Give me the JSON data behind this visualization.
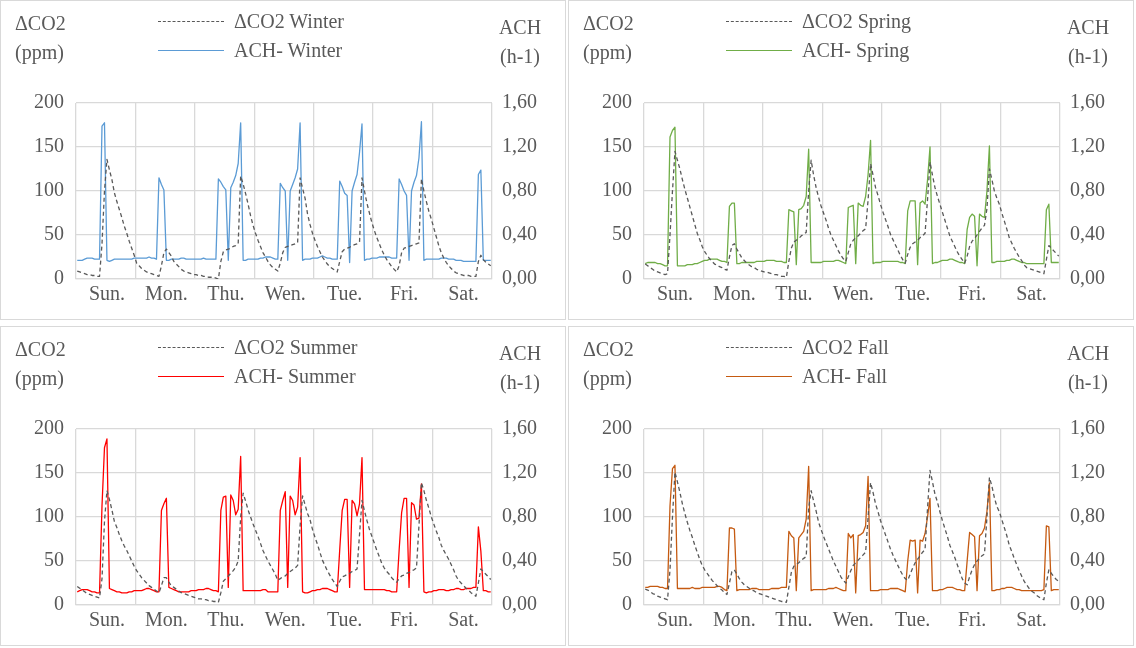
{
  "chart_data": [
    {
      "type": "line",
      "ylabel": "ΔCO2 (ppm)",
      "y2label": "ACH (h-1)",
      "legend": "top",
      "grid": true,
      "categories": [
        null,
        null,
        null,
        null,
        null,
        null,
        null,
        null,
        null,
        null,
        null,
        null,
        "Sun.",
        null,
        null,
        null,
        null,
        null,
        null,
        null,
        null,
        null,
        null,
        null,
        null,
        null,
        null,
        null,
        null,
        null,
        null,
        null,
        null,
        null,
        null,
        null,
        "Mon.",
        null,
        null,
        null,
        null,
        null,
        null,
        null,
        null,
        null,
        null,
        null,
        null,
        null,
        null,
        null,
        null,
        null,
        null,
        null,
        null,
        null,
        null,
        null,
        "Thu.",
        null,
        null,
        null,
        null,
        null,
        null,
        null,
        null,
        null,
        null,
        null,
        null,
        null,
        null,
        null,
        null,
        null,
        null,
        null,
        null,
        null,
        null,
        null,
        "Wen.",
        null,
        null,
        null,
        null,
        null,
        null,
        null,
        null,
        null,
        null,
        null,
        null,
        null,
        null,
        null,
        null,
        null,
        null,
        null,
        null,
        null,
        null,
        null,
        "Tue.",
        null,
        null,
        null,
        null,
        null,
        null,
        null,
        null,
        null,
        null,
        null,
        null,
        null,
        null,
        null,
        null,
        null,
        null,
        null,
        null,
        null,
        null,
        null,
        "Fri.",
        null,
        null,
        null,
        null,
        null,
        null,
        null,
        null,
        null,
        null,
        null,
        null,
        null,
        null,
        null,
        null,
        null,
        null,
        null,
        null,
        null,
        null,
        null,
        "Sat.",
        null,
        null,
        null,
        null,
        null,
        null,
        null,
        null,
        null,
        null,
        null
      ],
      "ylim": [
        0,
        200
      ],
      "yticks": [
        0,
        50,
        100,
        150,
        200
      ],
      "y2lim": [
        0,
        1.6
      ],
      "y2ticks": [
        {
          "value": 0,
          "label": "0,00"
        },
        {
          "value": 0.4,
          "label": "0,40"
        },
        {
          "value": 0.8,
          "label": "0,80"
        },
        {
          "value": 1.2,
          "label": "1,20"
        },
        {
          "value": 1.6,
          "label": "1,60"
        }
      ],
      "series": [
        {
          "name": "ΔCO2 Winter",
          "color": "#595959",
          "line_style": "dashed",
          "values": [
            9,
            8,
            7,
            6,
            5,
            5,
            4,
            4,
            3,
            3,
            40,
            100,
            136,
            124,
            113,
            98,
            88,
            79,
            70,
            60,
            52,
            43,
            35,
            27,
            18,
            15,
            12,
            10,
            8,
            7,
            6,
            5,
            4,
            3,
            15,
            30,
            34,
            30,
            26,
            20,
            17,
            14,
            11,
            9,
            8,
            7,
            6,
            5,
            5,
            4,
            4,
            3,
            3,
            2,
            2,
            2,
            1,
            0,
            20,
            31,
            33,
            34,
            35,
            37,
            38,
            40,
            117,
            108,
            97,
            85,
            72,
            61,
            52,
            44,
            37,
            30,
            25,
            20,
            16,
            13,
            11,
            9,
            18,
            30,
            36,
            37,
            38,
            39,
            40,
            41,
            115,
            103,
            92,
            74,
            62,
            52,
            44,
            37,
            31,
            25,
            21,
            17,
            14,
            12,
            10,
            8,
            20,
            31,
            34,
            35,
            36,
            38,
            39,
            40,
            42,
            115,
            100,
            86,
            75,
            64,
            55,
            47,
            40,
            33,
            27,
            22,
            18,
            14,
            11,
            8,
            15,
            30,
            35,
            36,
            37,
            38,
            39,
            40,
            41,
            114,
            100,
            88,
            77,
            68,
            58,
            48,
            38,
            30,
            24,
            19,
            15,
            12,
            9,
            7,
            6,
            5,
            4,
            4,
            4,
            3,
            3,
            3,
            20,
            27,
            22,
            19,
            17,
            15
          ]
        },
        {
          "name": "ACH- Winter",
          "color": "#5b9bd5",
          "axis": "y2",
          "values": [
            0.17,
            0.17,
            0.17,
            0.18,
            0.19,
            0.19,
            0.19,
            0.18,
            0.18,
            0.18,
            1.39,
            1.42,
            0.17,
            0.16,
            0.17,
            0.18,
            0.18,
            0.18,
            0.18,
            0.18,
            0.18,
            0.18,
            0.18,
            0.19,
            0.19,
            0.19,
            0.19,
            0.19,
            0.19,
            0.2,
            0.19,
            0.19,
            0.18,
            0.92,
            0.86,
            0.81,
            0.17,
            0.17,
            0.18,
            0.18,
            0.18,
            0.18,
            0.19,
            0.19,
            0.18,
            0.18,
            0.18,
            0.18,
            0.18,
            0.18,
            0.18,
            0.19,
            0.18,
            0.18,
            0.18,
            0.18,
            0.18,
            0.91,
            0.88,
            0.84,
            0.81,
            0.17,
            0.83,
            0.88,
            0.94,
            1.05,
            1.42,
            0.17,
            0.17,
            0.18,
            0.18,
            0.18,
            0.18,
            0.18,
            0.19,
            0.19,
            0.2,
            0.2,
            0.2,
            0.19,
            0.18,
            0.18,
            0.87,
            0.83,
            0.8,
            0.17,
            0.8,
            0.86,
            0.92,
            1.0,
            1.42,
            0.17,
            0.18,
            0.18,
            0.18,
            0.19,
            0.19,
            0.19,
            0.2,
            0.21,
            0.2,
            0.19,
            0.19,
            0.18,
            0.18,
            0.18,
            0.89,
            0.84,
            0.78,
            0.76,
            0.15,
            0.8,
            0.88,
            0.95,
            1.15,
            1.41,
            0.17,
            0.18,
            0.18,
            0.19,
            0.19,
            0.19,
            0.2,
            0.2,
            0.2,
            0.2,
            0.2,
            0.19,
            0.19,
            0.19,
            0.91,
            0.86,
            0.8,
            0.76,
            0.17,
            0.8,
            0.88,
            0.94,
            1.1,
            1.43,
            0.17,
            0.18,
            0.18,
            0.18,
            0.18,
            0.18,
            0.18,
            0.19,
            0.19,
            0.19,
            0.18,
            0.18,
            0.18,
            0.17,
            0.17,
            0.17,
            0.16,
            0.16,
            0.16,
            0.16,
            0.16,
            0.16,
            0.95,
            0.99,
            0.17,
            0.17,
            0.17,
            0.17
          ]
        }
      ]
    },
    {
      "type": "line",
      "ylabel": "ΔCO2 (ppm)",
      "y2label": "ACH (h-1)",
      "legend": "top",
      "grid": true,
      "categories": [
        null,
        null,
        null,
        null,
        null,
        null,
        null,
        null,
        null,
        null,
        null,
        null,
        "Sun.",
        null,
        null,
        null,
        null,
        null,
        null,
        null,
        null,
        null,
        null,
        null,
        null,
        null,
        null,
        null,
        null,
        null,
        null,
        null,
        null,
        null,
        null,
        null,
        "Mon.",
        null,
        null,
        null,
        null,
        null,
        null,
        null,
        null,
        null,
        null,
        null,
        null,
        null,
        null,
        null,
        null,
        null,
        null,
        null,
        null,
        null,
        null,
        null,
        "Thu.",
        null,
        null,
        null,
        null,
        null,
        null,
        null,
        null,
        null,
        null,
        null,
        null,
        null,
        null,
        null,
        null,
        null,
        null,
        null,
        null,
        null,
        null,
        null,
        "Wen.",
        null,
        null,
        null,
        null,
        null,
        null,
        null,
        null,
        null,
        null,
        null,
        null,
        null,
        null,
        null,
        null,
        null,
        null,
        null,
        null,
        null,
        null,
        null,
        "Tue.",
        null,
        null,
        null,
        null,
        null,
        null,
        null,
        null,
        null,
        null,
        null,
        null,
        null,
        null,
        null,
        null,
        null,
        null,
        null,
        null,
        null,
        null,
        null,
        "Fri.",
        null,
        null,
        null,
        null,
        null,
        null,
        null,
        null,
        null,
        null,
        null,
        null,
        null,
        null,
        null,
        null,
        null,
        null,
        null,
        null,
        null,
        null,
        null,
        "Sat.",
        null,
        null,
        null,
        null,
        null,
        null,
        null,
        null,
        null,
        null,
        null
      ],
      "ylim": [
        0,
        200
      ],
      "yticks": [
        0,
        50,
        100,
        150,
        200
      ],
      "y2lim": [
        0,
        1.6
      ],
      "y2ticks": [
        {
          "value": 0,
          "label": "0,00"
        },
        {
          "value": 0.4,
          "label": "0,40"
        },
        {
          "value": 0.8,
          "label": "0,80"
        },
        {
          "value": 1.2,
          "label": "1,20"
        },
        {
          "value": 1.6,
          "label": "1,60"
        }
      ],
      "series": [
        {
          "name": "ΔCO2 Spring",
          "color": "#595959",
          "line_style": "dashed",
          "values": [
            17,
            15,
            13,
            11,
            9,
            8,
            7,
            6,
            5,
            6,
            50,
            100,
            145,
            135,
            125,
            113,
            102,
            92,
            82,
            72,
            62,
            52,
            45,
            37,
            31,
            27,
            23,
            20,
            17,
            16,
            14,
            13,
            11,
            10,
            25,
            38,
            40,
            34,
            29,
            24,
            21,
            18,
            16,
            14,
            13,
            11,
            10,
            9,
            8,
            8,
            7,
            6,
            5,
            5,
            4,
            3,
            3,
            2,
            20,
            35,
            42,
            44,
            46,
            49,
            51,
            53,
            100,
            135,
            118,
            104,
            93,
            83,
            75,
            67,
            58,
            50,
            44,
            38,
            32,
            27,
            23,
            20,
            30,
            40,
            44,
            47,
            49,
            52,
            55,
            57,
            90,
            131,
            118,
            104,
            95,
            85,
            76,
            68,
            60,
            51,
            45,
            39,
            33,
            27,
            22,
            18,
            28,
            36,
            40,
            42,
            44,
            47,
            49,
            52,
            90,
            133,
            118,
            104,
            94,
            85,
            76,
            67,
            58,
            49,
            43,
            37,
            31,
            26,
            22,
            18,
            26,
            37,
            43,
            46,
            50,
            54,
            58,
            61,
            80,
            125,
            113,
            100,
            92,
            85,
            75,
            66,
            57,
            47,
            41,
            35,
            30,
            25,
            21,
            16,
            13,
            12,
            11,
            10,
            9,
            8,
            7,
            6,
            22,
            38,
            35,
            32,
            29,
            26
          ]
        },
        {
          "name": "ACH- Spring",
          "color": "#70ad47",
          "axis": "y2",
          "values": [
            0.14,
            0.15,
            0.15,
            0.15,
            0.15,
            0.14,
            0.14,
            0.13,
            0.12,
            0.12,
            1.29,
            1.35,
            1.38,
            0.12,
            0.12,
            0.12,
            0.12,
            0.13,
            0.13,
            0.13,
            0.14,
            0.14,
            0.15,
            0.16,
            0.17,
            0.17,
            0.18,
            0.18,
            0.18,
            0.18,
            0.17,
            0.16,
            0.16,
            0.15,
            0.66,
            0.69,
            0.69,
            0.14,
            0.14,
            0.15,
            0.15,
            0.15,
            0.15,
            0.15,
            0.15,
            0.16,
            0.16,
            0.16,
            0.16,
            0.17,
            0.17,
            0.17,
            0.17,
            0.16,
            0.16,
            0.16,
            0.15,
            0.15,
            0.63,
            0.62,
            0.61,
            0.13,
            0.63,
            0.64,
            0.67,
            0.75,
            1.18,
            0.15,
            0.15,
            0.15,
            0.15,
            0.15,
            0.16,
            0.16,
            0.16,
            0.16,
            0.16,
            0.17,
            0.17,
            0.16,
            0.15,
            0.14,
            0.65,
            0.66,
            0.67,
            0.14,
            0.69,
            0.67,
            0.66,
            0.75,
            0.95,
            1.26,
            0.14,
            0.15,
            0.15,
            0.15,
            0.16,
            0.16,
            0.16,
            0.16,
            0.16,
            0.16,
            0.16,
            0.15,
            0.15,
            0.14,
            0.62,
            0.71,
            0.71,
            0.71,
            0.13,
            0.69,
            0.71,
            0.68,
            0.9,
            1.2,
            0.14,
            0.15,
            0.15,
            0.16,
            0.17,
            0.17,
            0.17,
            0.18,
            0.18,
            0.17,
            0.16,
            0.15,
            0.15,
            0.14,
            0.45,
            0.56,
            0.59,
            0.57,
            0.12,
            0.59,
            0.57,
            0.56,
            0.8,
            1.21,
            0.15,
            0.15,
            0.16,
            0.16,
            0.16,
            0.16,
            0.17,
            0.17,
            0.18,
            0.18,
            0.17,
            0.16,
            0.15,
            0.15,
            0.14,
            0.14,
            0.14,
            0.14,
            0.14,
            0.14,
            0.14,
            0.14,
            0.63,
            0.68,
            0.15,
            0.15,
            0.15,
            0.15
          ]
        }
      ]
    },
    {
      "type": "line",
      "ylabel": "ΔCO2 (ppm)",
      "y2label": "ACH (h-1)",
      "legend": "top",
      "grid": true,
      "categories": [
        null,
        null,
        null,
        null,
        null,
        null,
        null,
        null,
        null,
        null,
        null,
        null,
        "Sun.",
        null,
        null,
        null,
        null,
        null,
        null,
        null,
        null,
        null,
        null,
        null,
        null,
        null,
        null,
        null,
        null,
        null,
        null,
        null,
        null,
        null,
        null,
        null,
        "Mon.",
        null,
        null,
        null,
        null,
        null,
        null,
        null,
        null,
        null,
        null,
        null,
        null,
        null,
        null,
        null,
        null,
        null,
        null,
        null,
        null,
        null,
        null,
        null,
        "Thu.",
        null,
        null,
        null,
        null,
        null,
        null,
        null,
        null,
        null,
        null,
        null,
        null,
        null,
        null,
        null,
        null,
        null,
        null,
        null,
        null,
        null,
        null,
        null,
        "Wen.",
        null,
        null,
        null,
        null,
        null,
        null,
        null,
        null,
        null,
        null,
        null,
        null,
        null,
        null,
        null,
        null,
        null,
        null,
        null,
        null,
        null,
        null,
        null,
        "Tue.",
        null,
        null,
        null,
        null,
        null,
        null,
        null,
        null,
        null,
        null,
        null,
        null,
        null,
        null,
        null,
        null,
        null,
        null,
        null,
        null,
        null,
        null,
        null,
        "Fri.",
        null,
        null,
        null,
        null,
        null,
        null,
        null,
        null,
        null,
        null,
        null,
        null,
        null,
        null,
        null,
        null,
        null,
        null,
        null,
        null,
        null,
        null,
        null,
        "Sat.",
        null,
        null,
        null,
        null,
        null,
        null,
        null,
        null,
        null,
        null,
        null
      ],
      "ylim": [
        0,
        200
      ],
      "yticks": [
        0,
        50,
        100,
        150,
        200
      ],
      "y2lim": [
        0,
        1.6
      ],
      "y2ticks": [
        {
          "value": 0,
          "label": "0,00"
        },
        {
          "value": 0.4,
          "label": "0,40"
        },
        {
          "value": 0.8,
          "label": "0,80"
        },
        {
          "value": 1.2,
          "label": "1,20"
        },
        {
          "value": 1.6,
          "label": "1,60"
        }
      ],
      "series": [
        {
          "name": "ΔCO2 Summer",
          "color": "#595959",
          "line_style": "dashed",
          "values": [
            21,
            19,
            17,
            15,
            13,
            12,
            11,
            10,
            9,
            8,
            30,
            95,
            130,
            120,
            108,
            95,
            88,
            80,
            73,
            67,
            62,
            56,
            50,
            44,
            39,
            35,
            31,
            28,
            25,
            22,
            20,
            18,
            16,
            14,
            22,
            31,
            31,
            26,
            22,
            20,
            18,
            16,
            14,
            13,
            12,
            11,
            10,
            9,
            8,
            7,
            7,
            6,
            6,
            5,
            5,
            4,
            4,
            3,
            14,
            27,
            30,
            33,
            36,
            39,
            43,
            50,
            100,
            127,
            118,
            108,
            100,
            92,
            85,
            78,
            70,
            62,
            56,
            50,
            45,
            40,
            35,
            28,
            30,
            32,
            33,
            36,
            38,
            40,
            42,
            45,
            90,
            124,
            114,
            104,
            97,
            86,
            77,
            69,
            60,
            51,
            45,
            39,
            34,
            29,
            25,
            21,
            27,
            32,
            33,
            35,
            36,
            38,
            39,
            41,
            80,
            119,
            107,
            96,
            86,
            78,
            70,
            62,
            55,
            47,
            42,
            38,
            35,
            31,
            28,
            26,
            30,
            33,
            34,
            36,
            37,
            39,
            40,
            42,
            90,
            139,
            130,
            119,
            110,
            100,
            92,
            84,
            77,
            68,
            62,
            57,
            52,
            46,
            40,
            33,
            28,
            25,
            22,
            19,
            17,
            14,
            12,
            10,
            25,
            41,
            38,
            35,
            32,
            29
          ]
        },
        {
          "name": "ACH- Summer",
          "color": "#ff0000",
          "axis": "y2",
          "values": [
            0.12,
            0.13,
            0.14,
            0.14,
            0.14,
            0.13,
            0.12,
            0.12,
            0.11,
            0.11,
            0.9,
            1.43,
            1.51,
            0.15,
            0.14,
            0.13,
            0.12,
            0.12,
            0.11,
            0.11,
            0.11,
            0.12,
            0.12,
            0.13,
            0.13,
            0.13,
            0.13,
            0.14,
            0.15,
            0.15,
            0.14,
            0.13,
            0.12,
            0.12,
            0.86,
            0.92,
            0.97,
            0.16,
            0.15,
            0.14,
            0.13,
            0.12,
            0.12,
            0.12,
            0.12,
            0.12,
            0.13,
            0.13,
            0.13,
            0.14,
            0.14,
            0.14,
            0.15,
            0.15,
            0.14,
            0.13,
            0.13,
            0.12,
            0.86,
            0.98,
            0.99,
            0.16,
            1.0,
            0.95,
            0.82,
            0.87,
            1.35,
            0.13,
            0.13,
            0.13,
            0.13,
            0.13,
            0.13,
            0.13,
            0.13,
            0.14,
            0.14,
            0.12,
            0.12,
            0.12,
            0.12,
            0.12,
            0.86,
            0.95,
            1.03,
            0.16,
            0.99,
            0.95,
            0.82,
            0.89,
            1.34,
            0.12,
            0.11,
            0.11,
            0.12,
            0.13,
            0.13,
            0.14,
            0.14,
            0.15,
            0.15,
            0.15,
            0.14,
            0.13,
            0.12,
            0.12,
            0.5,
            0.86,
            0.96,
            0.96,
            0.16,
            0.95,
            0.92,
            0.81,
            0.92,
            1.34,
            0.14,
            0.14,
            0.14,
            0.14,
            0.14,
            0.14,
            0.14,
            0.14,
            0.14,
            0.13,
            0.13,
            0.12,
            0.12,
            0.12,
            0.5,
            0.84,
            0.97,
            0.97,
            0.16,
            0.93,
            0.91,
            0.78,
            0.79,
            1.1,
            0.12,
            0.11,
            0.12,
            0.12,
            0.13,
            0.13,
            0.14,
            0.14,
            0.14,
            0.13,
            0.13,
            0.14,
            0.14,
            0.15,
            0.15,
            0.14,
            0.14,
            0.15,
            0.15,
            0.15,
            0.16,
            0.16,
            0.71,
            0.49,
            0.13,
            0.13,
            0.12,
            0.12
          ]
        }
      ]
    },
    {
      "type": "line",
      "ylabel": "ΔCO2 (ppm)",
      "y2label": "ACH (h-1)",
      "legend": "top",
      "grid": true,
      "categories": [
        null,
        null,
        null,
        null,
        null,
        null,
        null,
        null,
        null,
        null,
        null,
        null,
        "Sun.",
        null,
        null,
        null,
        null,
        null,
        null,
        null,
        null,
        null,
        null,
        null,
        null,
        null,
        null,
        null,
        null,
        null,
        null,
        null,
        null,
        null,
        null,
        null,
        "Mon.",
        null,
        null,
        null,
        null,
        null,
        null,
        null,
        null,
        null,
        null,
        null,
        null,
        null,
        null,
        null,
        null,
        null,
        null,
        null,
        null,
        null,
        null,
        null,
        "Thu.",
        null,
        null,
        null,
        null,
        null,
        null,
        null,
        null,
        null,
        null,
        null,
        null,
        null,
        null,
        null,
        null,
        null,
        null,
        null,
        null,
        null,
        null,
        null,
        "Wen.",
        null,
        null,
        null,
        null,
        null,
        null,
        null,
        null,
        null,
        null,
        null,
        null,
        null,
        null,
        null,
        null,
        null,
        null,
        null,
        null,
        null,
        null,
        null,
        "Tue.",
        null,
        null,
        null,
        null,
        null,
        null,
        null,
        null,
        null,
        null,
        null,
        null,
        null,
        null,
        null,
        null,
        null,
        null,
        null,
        null,
        null,
        null,
        null,
        "Fri.",
        null,
        null,
        null,
        null,
        null,
        null,
        null,
        null,
        null,
        null,
        null,
        null,
        null,
        null,
        null,
        null,
        null,
        null,
        null,
        null,
        null,
        null,
        null,
        "Sat.",
        null,
        null,
        null,
        null,
        null,
        null,
        null,
        null,
        null,
        null,
        null
      ],
      "ylim": [
        0,
        200
      ],
      "yticks": [
        0,
        50,
        100,
        150,
        200
      ],
      "y2lim": [
        0,
        1.6
      ],
      "y2ticks": [
        {
          "value": 0,
          "label": "0,00"
        },
        {
          "value": 0.4,
          "label": "0,40"
        },
        {
          "value": 0.8,
          "label": "0,80"
        },
        {
          "value": 1.2,
          "label": "1,20"
        },
        {
          "value": 1.6,
          "label": "1,60"
        }
      ],
      "series": [
        {
          "name": "ΔCO2 Fall",
          "color": "#595959",
          "line_style": "dashed",
          "values": [
            18,
            17,
            15,
            13,
            12,
            10,
            9,
            8,
            7,
            6,
            40,
            100,
            151,
            140,
            128,
            115,
            104,
            94,
            85,
            77,
            68,
            60,
            52,
            45,
            40,
            36,
            32,
            28,
            25,
            22,
            19,
            17,
            14,
            12,
            25,
            38,
            40,
            35,
            30,
            26,
            23,
            21,
            19,
            17,
            16,
            14,
            13,
            12,
            11,
            10,
            9,
            8,
            7,
            6,
            5,
            4,
            4,
            3,
            20,
            37,
            44,
            46,
            48,
            51,
            53,
            55,
            110,
            130,
            118,
            107,
            94,
            86,
            78,
            71,
            64,
            57,
            50,
            44,
            38,
            32,
            28,
            25,
            32,
            39,
            45,
            48,
            51,
            54,
            57,
            60,
            100,
            139,
            128,
            115,
            106,
            96,
            88,
            80,
            72,
            64,
            57,
            51,
            45,
            39,
            34,
            30,
            28,
            35,
            42,
            48,
            52,
            56,
            60,
            63,
            110,
            153,
            140,
            126,
            117,
            106,
            96,
            87,
            78,
            68,
            61,
            54,
            46,
            38,
            30,
            25,
            23,
            32,
            40,
            46,
            50,
            53,
            56,
            58,
            100,
            145,
            135,
            122,
            112,
            106,
            97,
            88,
            79,
            68,
            61,
            53,
            46,
            39,
            33,
            27,
            23,
            19,
            16,
            14,
            11,
            9,
            7,
            6,
            25,
            40,
            36,
            32,
            29,
            27
          ]
        },
        {
          "name": "ACH- Fall",
          "color": "#c55a11",
          "axis": "y2",
          "values": [
            0.16,
            0.16,
            0.17,
            0.17,
            0.17,
            0.17,
            0.16,
            0.16,
            0.15,
            0.15,
            0.9,
            1.24,
            1.27,
            0.15,
            0.15,
            0.15,
            0.15,
            0.15,
            0.15,
            0.16,
            0.15,
            0.15,
            0.15,
            0.16,
            0.16,
            0.16,
            0.16,
            0.16,
            0.16,
            0.17,
            0.17,
            0.16,
            0.14,
            0.13,
            0.7,
            0.7,
            0.69,
            0.13,
            0.14,
            0.14,
            0.14,
            0.14,
            0.14,
            0.15,
            0.15,
            0.15,
            0.14,
            0.14,
            0.14,
            0.14,
            0.14,
            0.15,
            0.15,
            0.15,
            0.15,
            0.16,
            0.16,
            0.16,
            0.67,
            0.63,
            0.61,
            0.13,
            0.61,
            0.64,
            0.67,
            0.78,
            1.26,
            0.13,
            0.14,
            0.14,
            0.14,
            0.14,
            0.14,
            0.14,
            0.15,
            0.15,
            0.15,
            0.16,
            0.15,
            0.14,
            0.13,
            0.13,
            0.65,
            0.61,
            0.64,
            0.11,
            0.63,
            0.64,
            0.66,
            0.72,
            1.17,
            0.13,
            0.13,
            0.13,
            0.13,
            0.14,
            0.14,
            0.14,
            0.14,
            0.15,
            0.15,
            0.15,
            0.15,
            0.14,
            0.13,
            0.12,
            0.4,
            0.59,
            0.58,
            0.59,
            0.11,
            0.59,
            0.58,
            0.65,
            0.8,
            0.97,
            0.13,
            0.13,
            0.13,
            0.14,
            0.14,
            0.15,
            0.16,
            0.16,
            0.16,
            0.15,
            0.14,
            0.14,
            0.13,
            0.13,
            0.4,
            0.66,
            0.64,
            0.62,
            0.13,
            0.63,
            0.65,
            0.7,
            0.85,
            1.11,
            0.13,
            0.13,
            0.14,
            0.14,
            0.15,
            0.15,
            0.16,
            0.16,
            0.16,
            0.15,
            0.14,
            0.14,
            0.13,
            0.13,
            0.13,
            0.13,
            0.13,
            0.13,
            0.13,
            0.13,
            0.13,
            0.14,
            0.72,
            0.71,
            0.13,
            0.14,
            0.14,
            0.14
          ]
        }
      ]
    }
  ]
}
